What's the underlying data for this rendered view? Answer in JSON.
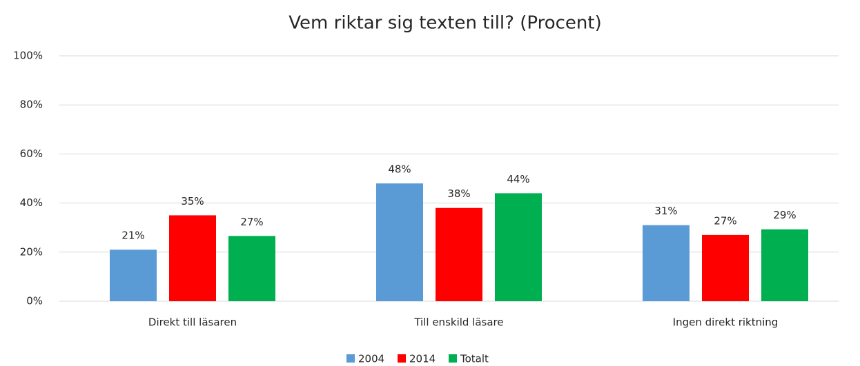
{
  "chart_data": {
    "type": "bar",
    "title": "Vem riktar sig texten till? (Procent)",
    "categories": [
      "Direkt till läsaren",
      "Till enskild läsare",
      "Ingen direkt riktning"
    ],
    "series": [
      {
        "name": "2004",
        "color": "#5b9bd5",
        "values": [
          21,
          48,
          31
        ],
        "value_labels": [
          "21%",
          "48%",
          "31%"
        ]
      },
      {
        "name": "2014",
        "color": "#ff0000",
        "values": [
          35,
          38,
          27
        ],
        "value_labels": [
          "35%",
          "38%",
          "27%"
        ]
      },
      {
        "name": "Totalt",
        "color": "#00b050",
        "values": [
          26.6,
          44,
          29.3
        ],
        "value_labels": [
          "27%",
          "44%",
          "29%"
        ]
      }
    ],
    "ylim": [
      0,
      100
    ],
    "yticks": [
      {
        "value": 0,
        "label": "0%"
      },
      {
        "value": 20,
        "label": "20%"
      },
      {
        "value": 40,
        "label": "40%"
      },
      {
        "value": 60,
        "label": "60%"
      },
      {
        "value": 80,
        "label": "80%"
      },
      {
        "value": 100,
        "label": "100%"
      }
    ],
    "grid": true,
    "legend": "bottom"
  }
}
